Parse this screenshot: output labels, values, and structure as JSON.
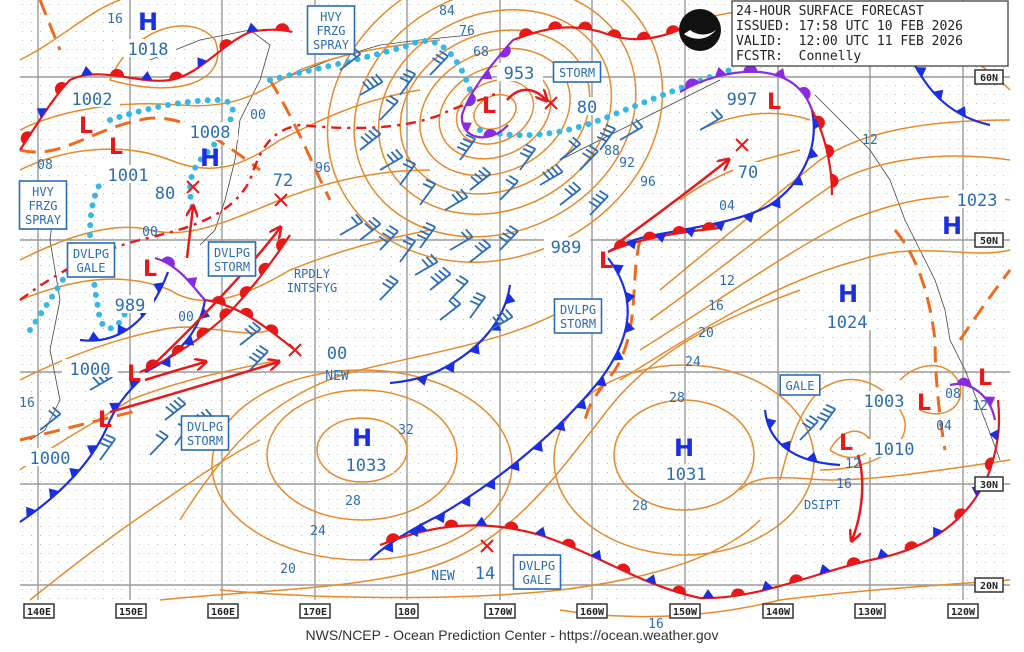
{
  "header": {
    "title": "24-HOUR SURFACE FORECAST",
    "issued": "ISSUED: 17:58 UTC 10 FEB 2026",
    "valid": "VALID:  12:00 UTC 11 FEB 2026",
    "forecaster": "FCSTR:  Connelly",
    "logo_text": "NOAA"
  },
  "footer": "NWS/NCEP - Ocean Prediction Center - https://ocean.weather.gov",
  "longitude_labels": [
    "140E",
    "150E",
    "160E",
    "170E",
    "180",
    "170W",
    "160W",
    "150W",
    "140W",
    "130W",
    "120W"
  ],
  "latitude_labels": [
    "60N",
    "50N",
    "30N",
    "20N"
  ],
  "highs": [
    {
      "symbol": "H",
      "pressure": "1018"
    },
    {
      "symbol": "H",
      "pressure": "1008"
    },
    {
      "symbol": "H",
      "pressure": "1033"
    },
    {
      "symbol": "H",
      "pressure": "1031"
    },
    {
      "symbol": "H",
      "pressure": "1024"
    },
    {
      "symbol": "H",
      "pressure": "1023"
    }
  ],
  "lows": [
    {
      "symbol": "L",
      "pressure": "1002"
    },
    {
      "symbol": "L",
      "pressure": "1001"
    },
    {
      "symbol": "L",
      "pressure": "989"
    },
    {
      "symbol": "L",
      "pressure": "1000"
    },
    {
      "symbol": "L",
      "pressure": "1000"
    },
    {
      "symbol": "L",
      "pressure": "953"
    },
    {
      "symbol": "L",
      "pressure": "997"
    },
    {
      "symbol": "L",
      "pressure": "989"
    },
    {
      "symbol": "L",
      "pressure": "1010"
    },
    {
      "symbol": "L",
      "pressure": "1003"
    },
    {
      "symbol": "L",
      "pressure": ""
    }
  ],
  "forecast_positions": [
    "80",
    "72",
    "00",
    "80",
    "70",
    "14"
  ],
  "new_labels": [
    "NEW",
    "NEW"
  ],
  "warnings": [
    "HVY\nFRZG\nSPRAY",
    "HVY\nFRZG\nSPRAY",
    "STORM",
    "DVLPG\nGALE",
    "DVLPG\nSTORM",
    "DVLPG\nSTORM",
    "DVLPG\nSTORM",
    "DVLPG\nGALE",
    "GALE"
  ],
  "annotations": [
    "RPDLY\nINTSFYG",
    "DSIPT"
  ],
  "isobar_labels": [
    "16",
    "08",
    "00",
    "96",
    "84",
    "76",
    "68",
    "88",
    "92",
    "96",
    "04",
    "12",
    "12",
    "16",
    "20",
    "24",
    "28",
    "32",
    "28",
    "24",
    "20",
    "28",
    "16",
    "00",
    "00",
    "16",
    "12",
    "16",
    "04",
    "08",
    "12"
  ],
  "colors": {
    "isobar": "#e8892a",
    "cold_front": "#1c2fe0",
    "warm_front": "#e81818",
    "occluded_front": "#8a2be2",
    "freezing_spray": "#35b8e8",
    "label_blue": "#2b6cb8"
  }
}
